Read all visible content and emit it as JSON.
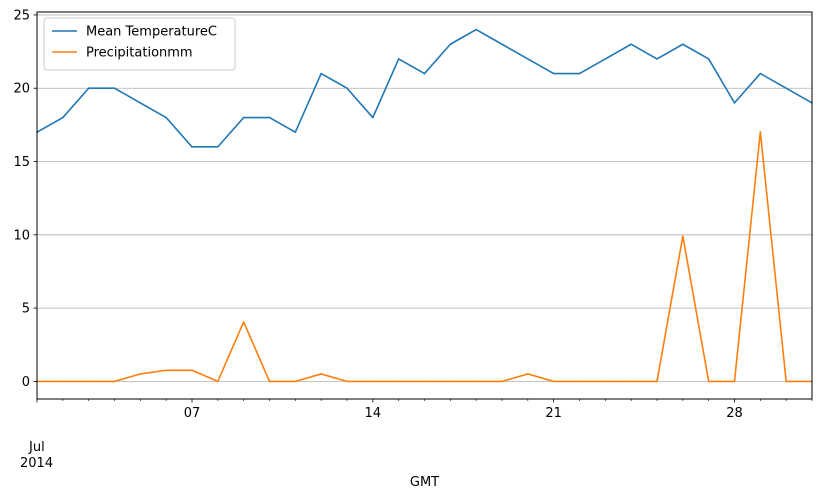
{
  "chart_data": {
    "type": "line",
    "xlabel": "GMT",
    "x_month_label": "Jul",
    "x_year_label": "2014",
    "x": [
      1,
      2,
      3,
      4,
      5,
      6,
      7,
      8,
      9,
      10,
      11,
      12,
      13,
      14,
      15,
      16,
      17,
      18,
      19,
      20,
      21,
      22,
      23,
      24,
      25,
      26,
      27,
      28,
      29,
      30,
      31
    ],
    "xticks": [
      {
        "day": 7,
        "label": "07"
      },
      {
        "day": 14,
        "label": "14"
      },
      {
        "day": 21,
        "label": "21"
      },
      {
        "day": 28,
        "label": "28"
      }
    ],
    "xlim": [
      1,
      31
    ],
    "ylim": [
      -1.2,
      25.2
    ],
    "yticks": [
      0,
      5,
      10,
      15,
      20,
      25
    ],
    "grid": "y",
    "legend_position": "upper-left",
    "series": [
      {
        "name": "Mean TemperatureC",
        "color": "#1f77b4",
        "values": [
          17,
          18,
          20,
          20,
          19,
          18,
          16,
          16,
          18,
          18,
          17,
          21,
          20,
          18,
          22,
          21,
          23,
          24,
          23,
          22,
          21,
          21,
          22,
          23,
          22,
          23,
          22,
          19,
          21,
          20,
          19
        ]
      },
      {
        "name": "Precipitationmm",
        "color": "#ff7f0e",
        "values": [
          0,
          0,
          0,
          0,
          0.51,
          0.76,
          0.76,
          0,
          4.06,
          0,
          0,
          0.51,
          0,
          0,
          0,
          0,
          0,
          0,
          0,
          0.51,
          0,
          0,
          0,
          0,
          0,
          9.91,
          0,
          0,
          17.02,
          0,
          0
        ]
      }
    ]
  }
}
